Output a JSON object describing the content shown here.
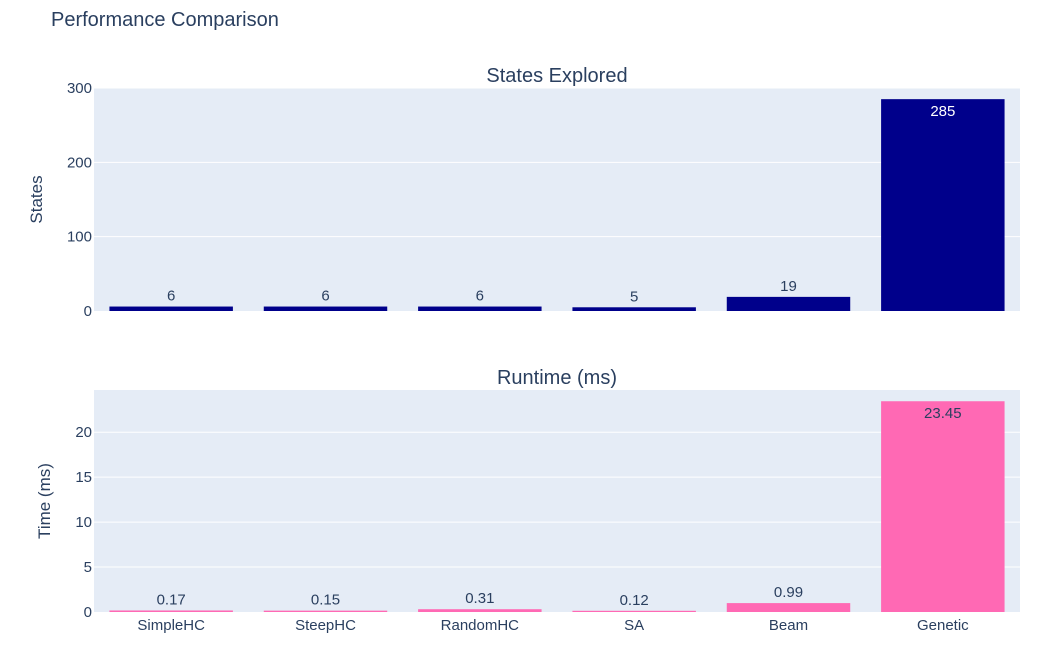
{
  "figure": {
    "title": "Performance Comparison"
  },
  "colors": {
    "plot_bg": "#E5ECF6",
    "grid": "#FFFFFF",
    "text": "#2A3F5F",
    "states_bar": "#00008B",
    "runtime_bar": "#FF69B4"
  },
  "chart_data": [
    {
      "type": "bar",
      "title": "States Explored",
      "xlabel": "",
      "ylabel": "States",
      "categories": [
        "SimpleHC",
        "SteepHC",
        "RandomHC",
        "SA",
        "Beam",
        "Genetic"
      ],
      "values": [
        6,
        6,
        6,
        5,
        19,
        285
      ],
      "value_labels": [
        "6",
        "6",
        "6",
        "5",
        "19",
        "285"
      ],
      "ylim": [
        0,
        300
      ],
      "yticks": [
        0,
        100,
        200,
        300
      ],
      "show_xtick_labels": false,
      "grid": true,
      "color": "#00008B"
    },
    {
      "type": "bar",
      "title": "Runtime (ms)",
      "xlabel": "",
      "ylabel": "Time (ms)",
      "categories": [
        "SimpleHC",
        "SteepHC",
        "RandomHC",
        "SA",
        "Beam",
        "Genetic"
      ],
      "values": [
        0.17,
        0.15,
        0.31,
        0.12,
        0.99,
        23.45
      ],
      "value_labels": [
        "0.17",
        "0.15",
        "0.31",
        "0.12",
        "0.99",
        "23.45"
      ],
      "ylim": [
        0,
        24.7
      ],
      "yticks": [
        0,
        5,
        10,
        15,
        20
      ],
      "show_xtick_labels": true,
      "grid": true,
      "color": "#FF69B4"
    }
  ]
}
